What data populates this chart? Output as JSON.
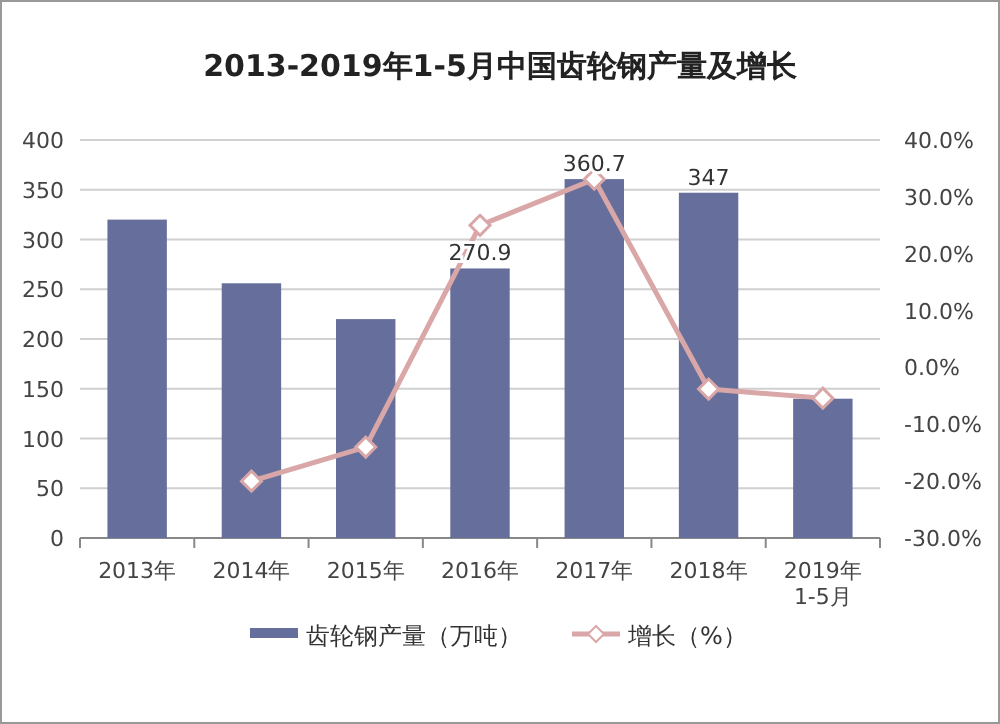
{
  "chart_data": {
    "type": "bar",
    "title": "2013-2019年1-5月中国齿轮钢产量及增长",
    "categories": [
      "2013年",
      "2014年",
      "2015年",
      "2016年",
      "2017年",
      "2018年",
      "2019年 1-5月"
    ],
    "series": [
      {
        "name": "齿轮钢产量（万吨）",
        "color": "#666f9b",
        "values": [
          320,
          256,
          220,
          270.9,
          360.7,
          347,
          140
        ],
        "value_labels": [
          null,
          null,
          null,
          "270.9",
          "360.7",
          "347",
          null
        ]
      },
      {
        "name": "增长（%）",
        "type": "line",
        "axis": "y2",
        "color": "#d9a7a7",
        "marker": "diamond",
        "values": [
          null,
          -20,
          -14,
          25,
          33.1,
          -3.8,
          -5.4
        ]
      }
    ],
    "ylim": [
      0,
      400
    ],
    "yticks": [
      0,
      50,
      100,
      150,
      200,
      250,
      300,
      350,
      400
    ],
    "y2lim": [
      -30,
      40
    ],
    "y2ticks": [
      {
        "value": -30,
        "label": "-30.0%"
      },
      {
        "value": -20,
        "label": "-20.0%"
      },
      {
        "value": -10,
        "label": "-10.0%"
      },
      {
        "value": 0,
        "label": "0.0%"
      },
      {
        "value": 10,
        "label": "10.0%"
      },
      {
        "value": 20,
        "label": "20.0%"
      },
      {
        "value": 30,
        "label": "30.0%"
      },
      {
        "value": 40,
        "label": "40.0%"
      }
    ],
    "grid": "y",
    "legend": "bottom"
  }
}
